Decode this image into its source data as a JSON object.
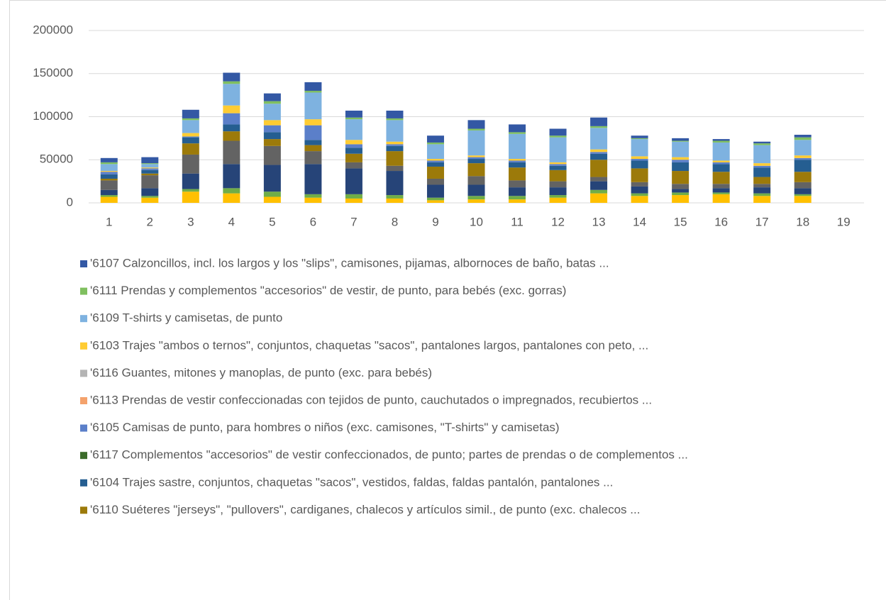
{
  "chart_data": {
    "type": "stacked_bar",
    "categories": [
      "1",
      "2",
      "3",
      "4",
      "5",
      "6",
      "7",
      "8",
      "9",
      "10",
      "11",
      "12",
      "13",
      "14",
      "15",
      "16",
      "17",
      "18",
      "19"
    ],
    "ylim": [
      0,
      200000
    ],
    "yticks": [
      0,
      50000,
      100000,
      150000,
      200000
    ],
    "grid": true,
    "legend": "bottom",
    "series": [
      {
        "name": "'6107 Calzoncillos, incl. los largos y los \"slips\", camisones, pijamas, albornoces de baño, batas ...",
        "color": "#3358a4",
        "values": [
          5000,
          7000,
          10000,
          10000,
          9000,
          10000,
          8000,
          9000,
          8000,
          10000,
          9000,
          8000,
          10000,
          3000,
          3000,
          2000,
          2000,
          3000,
          null
        ]
      },
      {
        "name": "'6111 Prendas y complementos \"accesorios\" de vestir, de punto, para bebés (exc. gorras)",
        "color": "#7fbf5f",
        "values": [
          2000,
          1000,
          2000,
          3000,
          3000,
          2000,
          2000,
          2000,
          2000,
          2000,
          2000,
          2000,
          2000,
          1000,
          1000,
          2000,
          2000,
          3000,
          null
        ]
      },
      {
        "name": "'6109 T-shirts y camisetas, de punto",
        "color": "#7eb2e0",
        "values": [
          8000,
          4000,
          15000,
          25000,
          19000,
          31000,
          24000,
          25000,
          17000,
          29000,
          29000,
          29000,
          25000,
          20000,
          18000,
          21000,
          21000,
          18000,
          null
        ]
      },
      {
        "name": "'6103 Trajes \"ambos o ternos\", conjuntos, chaquetas \"sacos\", pantalones largos, pantalones con peto, ...",
        "color": "#ffcc33",
        "values": [
          1000,
          1000,
          4000,
          9000,
          6000,
          7000,
          5000,
          3000,
          2000,
          2000,
          2000,
          2000,
          3000,
          3000,
          3000,
          2000,
          3000,
          3000,
          null
        ]
      },
      {
        "name": "'6116 Guantes, mitones y manoplas, de punto (exc. para bebés)",
        "color": "#b4b4b4",
        "values": [
          0,
          0,
          0,
          0,
          0,
          0,
          0,
          0,
          0,
          0,
          0,
          0,
          0,
          0,
          0,
          0,
          0,
          0,
          null
        ]
      },
      {
        "name": "'6113 Prendas de vestir confeccionadas con tejidos de punto, cauchutados o impregnados, recubiertos ...",
        "color": "#f4a26c",
        "values": [
          0,
          0,
          0,
          0,
          0,
          0,
          0,
          0,
          0,
          0,
          0,
          0,
          0,
          0,
          0,
          0,
          0,
          0,
          null
        ]
      },
      {
        "name": "'6105 Camisas de punto, para hombres o niños (exc. camisones, \"T-shirts\" y camisetas)",
        "color": "#5b7fc9",
        "values": [
          3000,
          2000,
          1000,
          13000,
          8000,
          17000,
          4000,
          2000,
          2000,
          2000,
          2000,
          2000,
          2000,
          2000,
          3000,
          2000,
          2000,
          2000,
          null
        ]
      },
      {
        "name": "'6117 Complementos \"accesorios\" de vestir confeccionados, de punto; partes de prendas o de complementos ...",
        "color": "#3b6b2a",
        "values": [
          0,
          0,
          0,
          0,
          0,
          0,
          0,
          0,
          0,
          0,
          0,
          0,
          0,
          0,
          0,
          0,
          0,
          0,
          null
        ]
      },
      {
        "name": "'6104 Trajes sastre, conjuntos, chaquetas \"sacos\", vestidos, faldas, faldas pantalón, pantalones ...",
        "color": "#255e91",
        "values": [
          5000,
          4000,
          7000,
          8000,
          8000,
          6000,
          7000,
          6000,
          5000,
          5000,
          6000,
          5000,
          7000,
          9000,
          10000,
          9000,
          11000,
          14000,
          null
        ]
      },
      {
        "name": "'6110 Suéteres \"jerseys\", \"pullovers\", cardiganes, chalecos y artículos simil., de punto (exc. chalecos ...",
        "color": "#9c7a0a",
        "values": [
          2000,
          2000,
          13000,
          11000,
          8000,
          7000,
          10000,
          17000,
          14000,
          15000,
          15000,
          13000,
          20000,
          16000,
          15000,
          14000,
          8000,
          12000,
          null
        ]
      },
      {
        "color": "#636363",
        "values": [
          11000,
          15000,
          22000,
          27000,
          22000,
          15000,
          7000,
          6000,
          7000,
          10000,
          8000,
          7000,
          5000,
          5000,
          6000,
          5000,
          4000,
          7000,
          null
        ]
      },
      {
        "color": "#264478",
        "values": [
          6000,
          9000,
          18000,
          28000,
          31000,
          35000,
          30000,
          28000,
          15000,
          13000,
          10000,
          9000,
          10000,
          8000,
          4000,
          5000,
          7000,
          7000,
          null
        ]
      },
      {
        "color": "#70ad47",
        "values": [
          2000,
          2000,
          3000,
          6000,
          6000,
          4000,
          5000,
          4000,
          3000,
          4000,
          4000,
          3000,
          4000,
          3000,
          3000,
          2000,
          3000,
          2000,
          null
        ]
      },
      {
        "color": "#ffc000",
        "values": [
          7000,
          6000,
          13000,
          11000,
          7000,
          6000,
          5000,
          5000,
          3000,
          4000,
          4000,
          6000,
          11000,
          8000,
          9000,
          10000,
          8000,
          8000,
          null
        ]
      }
    ]
  }
}
